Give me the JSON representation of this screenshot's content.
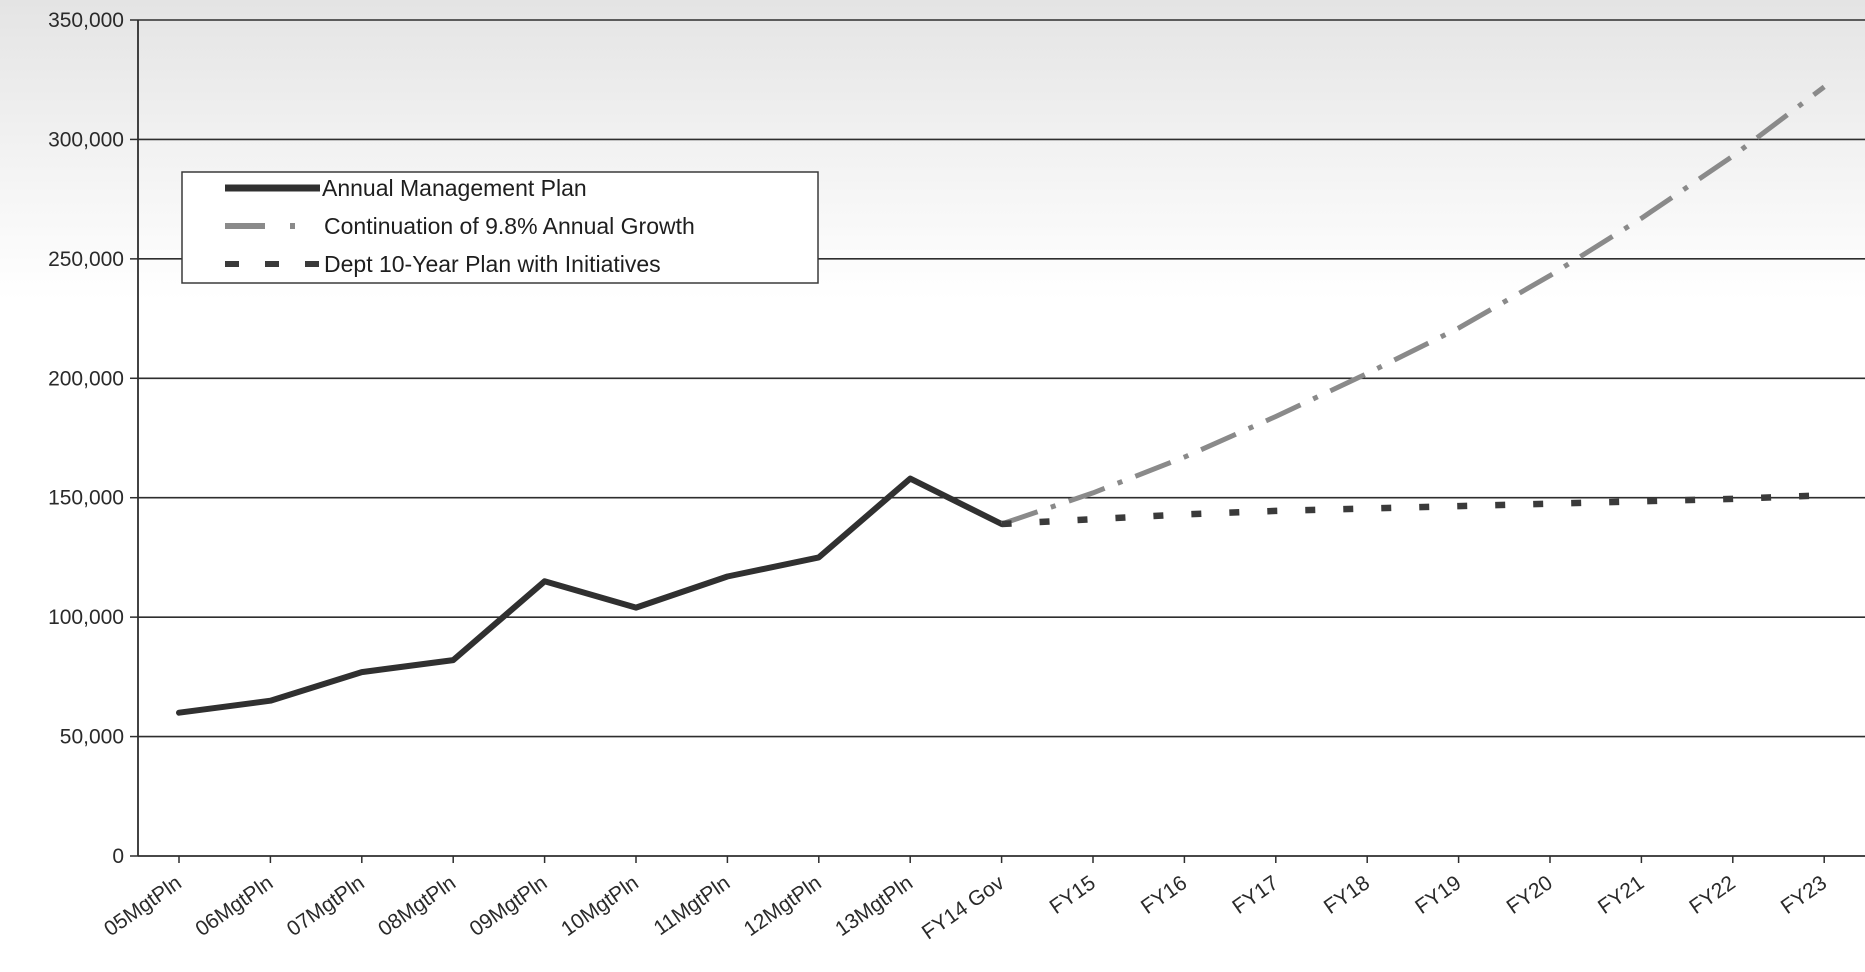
{
  "chart_data": {
    "type": "line",
    "title": "",
    "xlabel": "",
    "ylabel": "",
    "categories": [
      "05MgtPln",
      "06MgtPln",
      "07MgtPln",
      "08MgtPln",
      "09MgtPln",
      "10MgtPln",
      "11MgtPln",
      "12MgtPln",
      "13MgtPln",
      "FY14 Gov",
      "FY15",
      "FY16",
      "FY17",
      "FY18",
      "FY19",
      "FY20",
      "FY21",
      "FY22",
      "FY23"
    ],
    "ylim": [
      0,
      350000
    ],
    "yticks": [
      0,
      50000,
      100000,
      150000,
      200000,
      250000,
      300000,
      350000
    ],
    "ytick_labels": [
      "0",
      "50,000",
      "100,000",
      "150,000",
      "200,000",
      "250,000",
      "300,000",
      "350,000"
    ],
    "grid": "horizontal",
    "legend_position": "top-left",
    "series": [
      {
        "name": "Annual Management Plan",
        "style": "solid",
        "color": "#303030",
        "values": [
          60000,
          65000,
          77000,
          82000,
          115000,
          104000,
          117000,
          125000,
          158000,
          139000,
          null,
          null,
          null,
          null,
          null,
          null,
          null,
          null,
          null
        ]
      },
      {
        "name": "Continuation of 9.8% Annual Growth",
        "style": "dash-dot",
        "color": "#8a8a8a",
        "values": [
          null,
          null,
          null,
          null,
          null,
          null,
          null,
          null,
          null,
          139000,
          152000,
          167000,
          184000,
          202000,
          221000,
          243000,
          267000,
          293000,
          322000
        ]
      },
      {
        "name": "Dept 10-Year Plan with Initiatives",
        "style": "dotted",
        "color": "#3a3a3a",
        "values": [
          null,
          null,
          null,
          null,
          null,
          null,
          null,
          null,
          null,
          139000,
          141000,
          143000,
          144500,
          145500,
          146500,
          147500,
          148500,
          149500,
          151000
        ]
      }
    ]
  }
}
